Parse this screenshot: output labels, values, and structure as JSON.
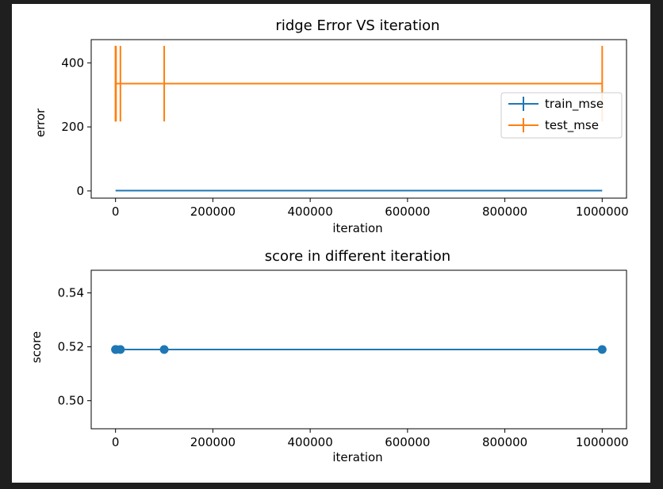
{
  "colors": {
    "background_outer": "#1f1f1f",
    "frame": "#ffffff",
    "train_series": "#1f77b4",
    "test_series": "#ff7f0e",
    "score_series": "#1f77b4"
  },
  "chart_data": [
    {
      "type": "line",
      "title": "ridge Error VS iteration",
      "xlabel": "iteration",
      "ylabel": "error",
      "xlim": [
        -50000,
        1050000
      ],
      "ylim": [
        -22.5,
        472.5
      ],
      "xticks": [
        "0",
        "200000",
        "400000",
        "600000",
        "800000",
        "1000000"
      ],
      "xtick_values": [
        0,
        200000,
        400000,
        600000,
        800000,
        1000000
      ],
      "yticks": [
        "0",
        "200",
        "400"
      ],
      "ytick_values": [
        0,
        200,
        400
      ],
      "grid": false,
      "legend_position": "center-right",
      "series": [
        {
          "name": "train_mse",
          "color": "#1f77b4",
          "style": "errorbar",
          "x": [
            10,
            100,
            1000,
            10000,
            100000,
            1000000
          ],
          "y": [
            1,
            1,
            1,
            1,
            1,
            1
          ],
          "yerr": [
            0,
            0,
            0,
            0,
            0,
            0
          ]
        },
        {
          "name": "test_mse",
          "color": "#ff7f0e",
          "style": "errorbar",
          "x": [
            10,
            100,
            1000,
            10000,
            100000,
            1000000
          ],
          "y": [
            335,
            335,
            335,
            335,
            335,
            335
          ],
          "yerr": [
            118,
            118,
            118,
            118,
            118,
            118
          ]
        }
      ]
    },
    {
      "type": "line",
      "title": "score in different iteration",
      "xlabel": "iteration",
      "ylabel": "score",
      "xlim": [
        -50000,
        1050000
      ],
      "ylim": [
        0.4896,
        0.5484
      ],
      "xticks": [
        "0",
        "200000",
        "400000",
        "600000",
        "800000",
        "1000000"
      ],
      "xtick_values": [
        0,
        200000,
        400000,
        600000,
        800000,
        1000000
      ],
      "yticks": [
        "0.50",
        "0.52",
        "0.54"
      ],
      "ytick_values": [
        0.5,
        0.52,
        0.54
      ],
      "grid": false,
      "series": [
        {
          "color": "#1f77b4",
          "style": "line-marker",
          "x": [
            10,
            100,
            1000,
            10000,
            100000,
            1000000
          ],
          "y": [
            0.519,
            0.519,
            0.519,
            0.519,
            0.519,
            0.519
          ]
        }
      ]
    }
  ]
}
